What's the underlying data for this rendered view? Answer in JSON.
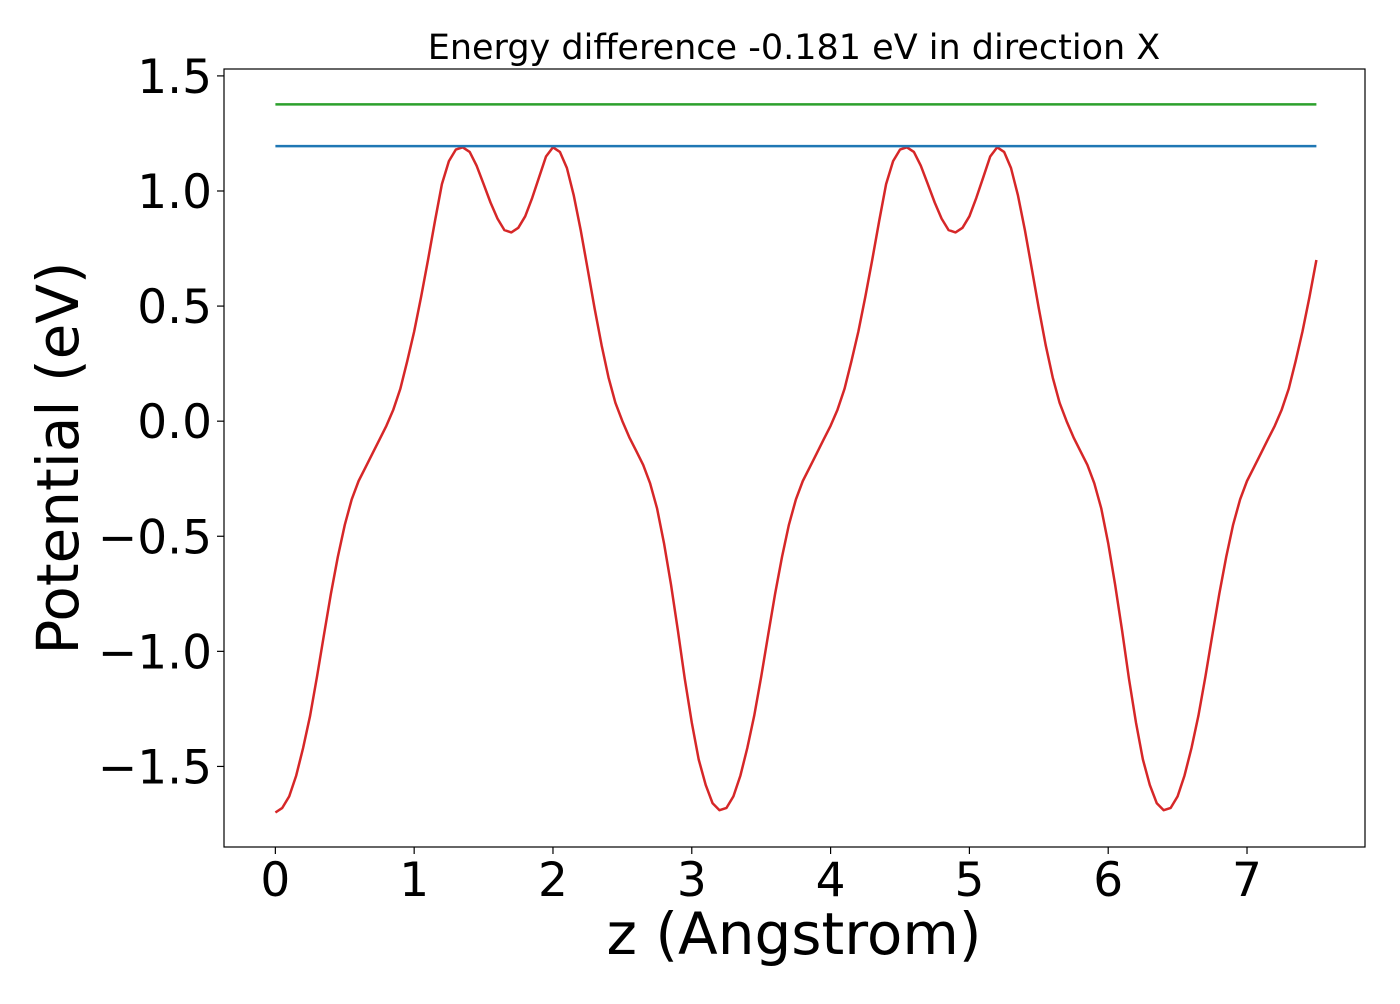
{
  "chart_data": {
    "type": "line",
    "title": "Energy difference -0.181 eV in direction X",
    "xlabel": "z (Angstrom)",
    "ylabel": "Potential (eV)",
    "xlim": [
      -0.37,
      7.85
    ],
    "ylim": [
      -1.85,
      1.53
    ],
    "x_ticks": [
      0,
      1,
      2,
      3,
      4,
      5,
      6,
      7
    ],
    "x_tick_labels": [
      "0",
      "1",
      "2",
      "3",
      "4",
      "5",
      "6",
      "7"
    ],
    "y_ticks": [
      -1.5,
      -1.0,
      -0.5,
      0.0,
      0.5,
      1.0,
      1.5
    ],
    "y_tick_labels": [
      "−1.5",
      "−1.0",
      "−0.5",
      "0.0",
      "0.5",
      "1.0",
      "1.5"
    ],
    "grid": false,
    "series": [
      {
        "color": "#d62728",
        "x": [
          0.0,
          0.05,
          0.1,
          0.15,
          0.2,
          0.25,
          0.3,
          0.35,
          0.4,
          0.45,
          0.5,
          0.55,
          0.6,
          0.65,
          0.7,
          0.75,
          0.8,
          0.85,
          0.9,
          0.95,
          1.0,
          1.05,
          1.1,
          1.15,
          1.2,
          1.25,
          1.3,
          1.35,
          1.4,
          1.45,
          1.5,
          1.55,
          1.6,
          1.65,
          1.7,
          1.75,
          1.8,
          1.85,
          1.9,
          1.95,
          2.0,
          2.05,
          2.1,
          2.15,
          2.2,
          2.25,
          2.3,
          2.35,
          2.4,
          2.45,
          2.5,
          2.55,
          2.6,
          2.65,
          2.7,
          2.75,
          2.8,
          2.85,
          2.9,
          2.95,
          3.0,
          3.05,
          3.1,
          3.15,
          3.2,
          3.25,
          3.3,
          3.35,
          3.4,
          3.45,
          3.5,
          3.55,
          3.6,
          3.65,
          3.7,
          3.75,
          3.8,
          3.85,
          3.9,
          3.95,
          4.0,
          4.05,
          4.1,
          4.15,
          4.2,
          4.25,
          4.3,
          4.35,
          4.4,
          4.45,
          4.5,
          4.55,
          4.6,
          4.65,
          4.7,
          4.75,
          4.8,
          4.85,
          4.9,
          4.95,
          5.0,
          5.05,
          5.1,
          5.15,
          5.2,
          5.25,
          5.3,
          5.35,
          5.4,
          5.45,
          5.5,
          5.55,
          5.6,
          5.65,
          5.7,
          5.75,
          5.8,
          5.85,
          5.9,
          5.95,
          6.0,
          6.05,
          6.1,
          6.15,
          6.2,
          6.25,
          6.3,
          6.35,
          6.4,
          6.45,
          6.5,
          6.55,
          6.6,
          6.65,
          6.7,
          6.75,
          6.8,
          6.85,
          6.9,
          6.95,
          7.0,
          7.05,
          7.1,
          7.15,
          7.2,
          7.25,
          7.3,
          7.35,
          7.4,
          7.45,
          7.5
        ],
        "y": [
          -1.7,
          -1.68,
          -1.63,
          -1.54,
          -1.42,
          -1.28,
          -1.11,
          -0.93,
          -0.75,
          -0.59,
          -0.45,
          -0.34,
          -0.26,
          -0.2,
          -0.14,
          -0.08,
          -0.02,
          0.05,
          0.14,
          0.26,
          0.39,
          0.54,
          0.7,
          0.87,
          1.03,
          1.13,
          1.18,
          1.19,
          1.17,
          1.11,
          1.03,
          0.95,
          0.88,
          0.83,
          0.82,
          0.84,
          0.89,
          0.97,
          1.06,
          1.15,
          1.19,
          1.17,
          1.1,
          0.98,
          0.83,
          0.66,
          0.49,
          0.33,
          0.19,
          0.08,
          0.0,
          -0.07,
          -0.13,
          -0.19,
          -0.27,
          -0.38,
          -0.53,
          -0.71,
          -0.91,
          -1.12,
          -1.31,
          -1.47,
          -1.58,
          -1.66,
          -1.69,
          -1.68,
          -1.63,
          -1.54,
          -1.42,
          -1.28,
          -1.11,
          -0.93,
          -0.75,
          -0.59,
          -0.45,
          -0.34,
          -0.26,
          -0.2,
          -0.14,
          -0.08,
          -0.02,
          0.05,
          0.14,
          0.26,
          0.39,
          0.54,
          0.7,
          0.87,
          1.03,
          1.13,
          1.18,
          1.19,
          1.17,
          1.11,
          1.03,
          0.95,
          0.88,
          0.83,
          0.82,
          0.84,
          0.89,
          0.97,
          1.06,
          1.15,
          1.19,
          1.17,
          1.1,
          0.98,
          0.83,
          0.66,
          0.49,
          0.33,
          0.19,
          0.08,
          0.0,
          -0.07,
          -0.13,
          -0.19,
          -0.27,
          -0.38,
          -0.53,
          -0.71,
          -0.91,
          -1.12,
          -1.31,
          -1.47,
          -1.58,
          -1.66,
          -1.69,
          -1.68,
          -1.63,
          -1.54,
          -1.42,
          -1.28,
          -1.11,
          -0.93,
          -0.75,
          -0.59,
          -0.45,
          -0.34,
          -0.26,
          -0.2,
          -0.14,
          -0.08,
          -0.02,
          0.05,
          0.14,
          0.26,
          0.39,
          0.54,
          0.7
        ]
      },
      {
        "color": "#1f77b4",
        "x": [
          0.0,
          7.5
        ],
        "y": [
          1.195,
          1.195
        ]
      },
      {
        "color": "#2ca02c",
        "x": [
          0.0,
          7.5
        ],
        "y": [
          1.376,
          1.376
        ]
      }
    ]
  }
}
